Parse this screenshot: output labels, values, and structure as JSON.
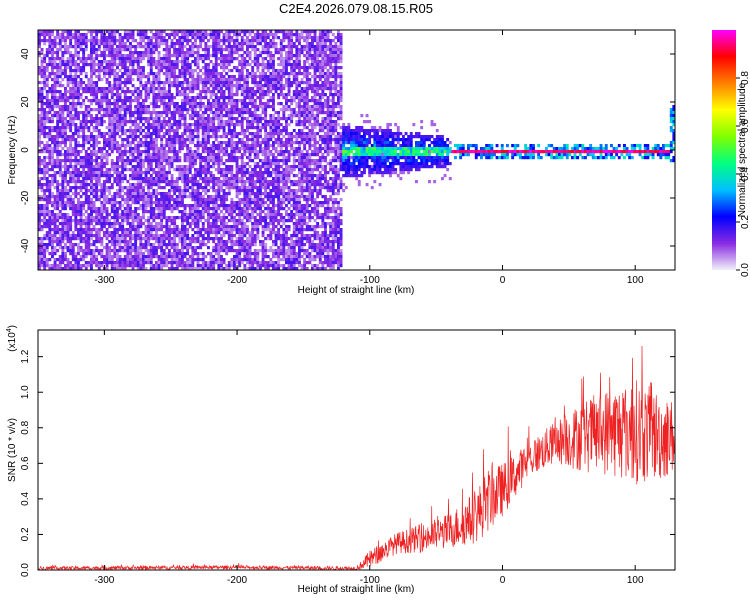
{
  "title": "C2E4.2026.079.08.15.R05",
  "chart_data": [
    {
      "type": "heatmap",
      "name": "spectrogram",
      "xlabel": "Height of straight line (km)",
      "ylabel": "Frequency (Hz)",
      "xlim": [
        -350,
        130
      ],
      "ylim": [
        -50,
        50
      ],
      "xticks": [
        -300,
        -200,
        -100,
        0,
        100
      ],
      "xtick_labels": [
        "-300",
        "-200",
        "-100",
        "0",
        "100"
      ],
      "yticks": [
        -40,
        -20,
        0,
        20,
        40
      ],
      "ytick_labels": [
        "-40",
        "-20",
        "0",
        "20",
        "40"
      ],
      "colorbar": {
        "label": "Normalized spectral amplitude",
        "range": [
          0,
          1
        ],
        "ticks": [
          0.0,
          0.2,
          0.4,
          0.6,
          0.8
        ],
        "tick_labels": [
          "0.0",
          "0.2",
          "0.4",
          "0.6",
          "0.8"
        ],
        "colormap": [
          "#f0f0f8",
          "#8a2be2",
          "#0000ff",
          "#00c0ff",
          "#00ff80",
          "#80ff00",
          "#ffff00",
          "#ff8000",
          "#ff0000",
          "#ff00ff"
        ]
      },
      "regions": [
        {
          "x_range": [
            -350,
            -120
          ],
          "f_range": [
            -50,
            50
          ],
          "amplitude": 0.1,
          "description": "broadband noise"
        },
        {
          "x_range": [
            -135,
            -40
          ],
          "f_range": [
            -10,
            10
          ],
          "amplitude": 0.35,
          "description": "signal onset"
        },
        {
          "x_range": [
            -40,
            125
          ],
          "f_center": 0,
          "amplitude": 0.95,
          "description": "carrier line"
        }
      ]
    },
    {
      "type": "line",
      "name": "snr",
      "xlabel": "Height of straight line (km)",
      "ylabel": "SNR (10 * v/v)",
      "y_multiplier_label": "(x10",
      "y_multiplier_exp": "4",
      "xlim": [
        -350,
        130
      ],
      "ylim": [
        0,
        1.35
      ],
      "xticks": [
        -300,
        -200,
        -100,
        0,
        100
      ],
      "xtick_labels": [
        "-300",
        "-200",
        "-100",
        "0",
        "100"
      ],
      "yticks": [
        0.0,
        0.2,
        0.4,
        0.6,
        0.8,
        1.0,
        1.2
      ],
      "ytick_labels": [
        "0.0",
        "0.2",
        "0.4",
        "0.6",
        "0.8",
        "1.0",
        "1.2"
      ],
      "color": "#ee2222",
      "envelope_x": [
        -350,
        -200,
        -110,
        -100,
        -80,
        -60,
        -40,
        -20,
        -10,
        0,
        20,
        40,
        60,
        80,
        100,
        120,
        130
      ],
      "envelope_mean": [
        0.01,
        0.015,
        0.01,
        0.06,
        0.15,
        0.18,
        0.22,
        0.3,
        0.4,
        0.45,
        0.62,
        0.72,
        0.75,
        0.78,
        0.78,
        0.75,
        0.75
      ],
      "envelope_spread": [
        0.01,
        0.01,
        0.01,
        0.05,
        0.06,
        0.08,
        0.1,
        0.15,
        0.18,
        0.15,
        0.1,
        0.12,
        0.2,
        0.25,
        0.3,
        0.25,
        0.2
      ]
    }
  ]
}
